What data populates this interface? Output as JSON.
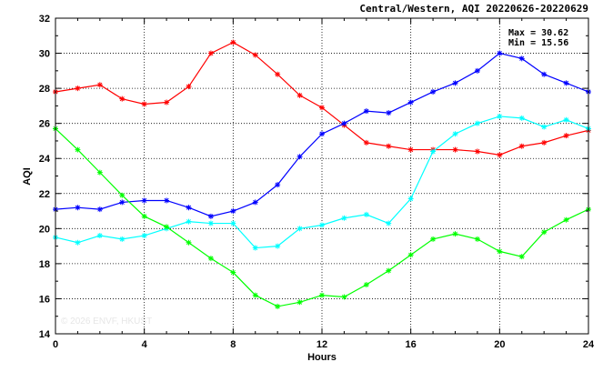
{
  "chart_data": {
    "type": "line",
    "title": "Central/Western, AQI 20220626-20220629",
    "xlabel": "Hours",
    "ylabel": "AQI",
    "xlim": [
      0,
      24
    ],
    "ylim": [
      14,
      32
    ],
    "xticks": [
      0,
      4,
      8,
      12,
      16,
      20,
      24
    ],
    "yticks": [
      14,
      16,
      18,
      20,
      22,
      24,
      26,
      28,
      30,
      32
    ],
    "grid": true,
    "stats": [
      "Max = 30.62",
      "Min = 15.56"
    ],
    "watermark": "© 2026 ENVF, HKUST",
    "x": [
      0,
      1,
      2,
      3,
      4,
      5,
      6,
      7,
      8,
      9,
      10,
      11,
      12,
      13,
      14,
      15,
      16,
      17,
      18,
      19,
      20,
      21,
      22,
      23,
      24
    ],
    "series": [
      {
        "color": "#ff0000",
        "values": [
          27.8,
          28.0,
          28.2,
          27.4,
          27.1,
          27.2,
          28.1,
          30.0,
          30.62,
          29.9,
          28.8,
          27.6,
          26.9,
          25.9,
          24.9,
          24.7,
          24.5,
          24.5,
          24.5,
          24.4,
          24.2,
          24.7,
          24.9,
          25.3,
          25.6
        ]
      },
      {
        "color": "#0000ff",
        "values": [
          21.1,
          21.2,
          21.1,
          21.5,
          21.6,
          21.6,
          21.2,
          20.7,
          21.0,
          21.5,
          22.5,
          24.1,
          25.4,
          26.0,
          26.7,
          26.6,
          27.2,
          27.8,
          28.3,
          29.0,
          30.0,
          29.7,
          28.8,
          28.3,
          27.8
        ]
      },
      {
        "color": "#00ffff",
        "values": [
          19.5,
          19.2,
          19.6,
          19.4,
          19.6,
          20.0,
          20.4,
          20.3,
          20.3,
          18.9,
          19.0,
          20.0,
          20.2,
          20.6,
          20.8,
          20.3,
          21.7,
          24.4,
          25.4,
          26.0,
          26.4,
          26.3,
          25.8,
          26.2,
          25.7
        ]
      },
      {
        "color": "#00ff00",
        "values": [
          25.7,
          24.5,
          23.2,
          21.9,
          20.7,
          20.1,
          19.2,
          18.3,
          17.5,
          16.2,
          15.56,
          15.8,
          16.2,
          16.1,
          16.8,
          17.6,
          18.5,
          19.4,
          19.7,
          19.4,
          18.7,
          18.4,
          19.8,
          20.5,
          21.1
        ]
      }
    ]
  }
}
